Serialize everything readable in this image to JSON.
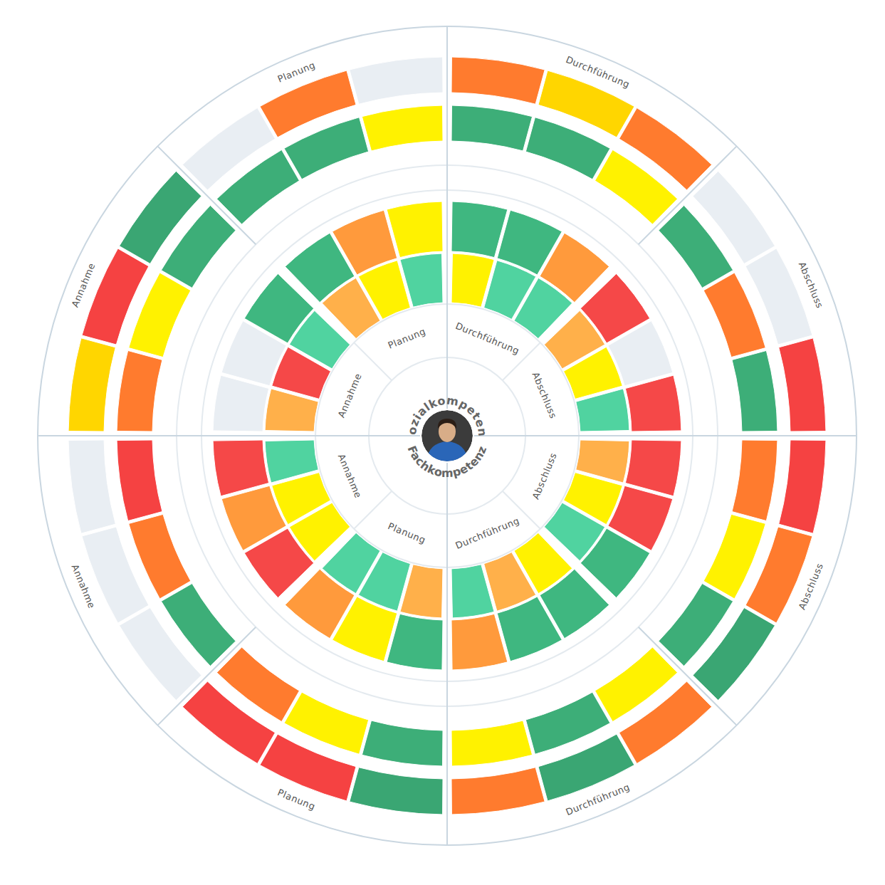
{
  "chart_data": {
    "type": "radial_heatmap",
    "competencies": [
      {
        "name": "Sozialkompetenz",
        "phases": [
          "Annahme",
          "Planung",
          "Durchführung",
          "Abschluss"
        ],
        "rings": [
          {
            "values": [
              2,
              1,
              4,
              2,
              3,
              4,
              3,
              4,
              4,
              2,
              3,
              4
            ]
          },
          {
            "values": [
              null,
              null,
              4,
              4,
              2,
              3,
              4,
              4,
              2,
              1,
              null,
              1
            ]
          },
          {
            "values": [
              2,
              3,
              4,
              4,
              4,
              3,
              4,
              4,
              3,
              4,
              2,
              4
            ]
          },
          {
            "values": [
              3,
              1,
              4,
              null,
              2,
              null,
              2,
              3,
              2,
              null,
              null,
              1
            ]
          }
        ]
      },
      {
        "name": "Fachkompetenz",
        "phases": [
          "Annahme",
          "Planung",
          "Durchführung",
          "Abschluss"
        ],
        "rings": [
          {
            "values": [
              4,
              3,
              3,
              4,
              4,
              2,
              4,
              2,
              3,
              4,
              3,
              2
            ]
          },
          {
            "values": [
              1,
              2,
              1,
              2,
              3,
              4,
              2,
              4,
              4,
              4,
              1,
              1
            ]
          },
          {
            "values": [
              1,
              2,
              4,
              2,
              3,
              4,
              3,
              4,
              3,
              4,
              3,
              2
            ]
          },
          {
            "values": [
              null,
              null,
              null,
              1,
              1,
              4,
              2,
              4,
              2,
              4,
              2,
              1
            ]
          }
        ]
      }
    ]
  }
}
